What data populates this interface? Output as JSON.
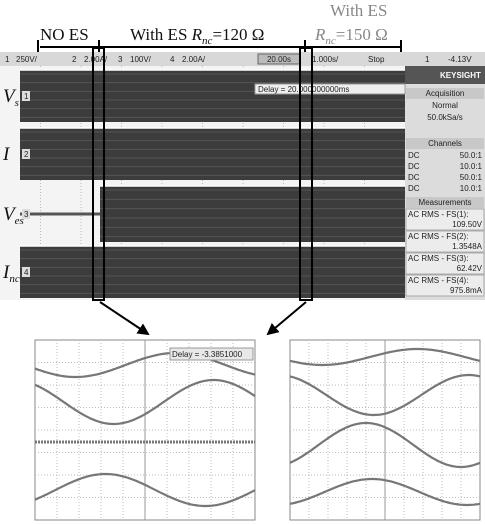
{
  "annotations": {
    "no_es": "NO ES",
    "es120": {
      "prefix": "With ES ",
      "r": "R",
      "sub": "nc",
      "suffix": "=120 Ω"
    },
    "es150_line1": "With ES",
    "es150": {
      "r": "R",
      "sub": "nc",
      "suffix": "=150 Ω"
    }
  },
  "scope": {
    "toolbar": [
      "1",
      "250V/",
      "2",
      "2.00A/",
      "3",
      "100V/",
      "4",
      "2.00A/"
    ],
    "timebase": "20.00s",
    "time_scale": "1.000s/",
    "status": "Stop",
    "trigger_ch": "1",
    "trigger_level": "-4.13V",
    "delay": "Delay = 20.000000000ms",
    "channel_labels": [
      {
        "main": "V",
        "sub": "s"
      },
      {
        "main": "I"
      },
      {
        "main": "V",
        "sub": "es"
      },
      {
        "main": "I",
        "sub": "nc"
      }
    ],
    "channel_markers": [
      "1",
      "2",
      "3",
      "4"
    ]
  },
  "panel": {
    "brand": "KEYSIGHT",
    "acquisition": {
      "title": "Acquisition",
      "mode": "Normal",
      "rate": "50.0kSa/s"
    },
    "channels": {
      "title": "Channels",
      "rows": [
        [
          "DC",
          "50.0:1"
        ],
        [
          "DC",
          "10.0:1"
        ],
        [
          "DC",
          "50.0:1"
        ],
        [
          "DC",
          "10.0:1"
        ]
      ]
    },
    "measurements": {
      "title": "Measurements",
      "items": [
        [
          "AC RMS - FS(1):",
          "109.50V"
        ],
        [
          "AC RMS - FS(2):",
          "1.3548A"
        ],
        [
          "AC RMS - FS(3):",
          "62.42V"
        ],
        [
          "AC RMS - FS(4):",
          "975.8mA"
        ]
      ]
    }
  },
  "zoom": {
    "delay": "Delay = -3.3851000"
  }
}
